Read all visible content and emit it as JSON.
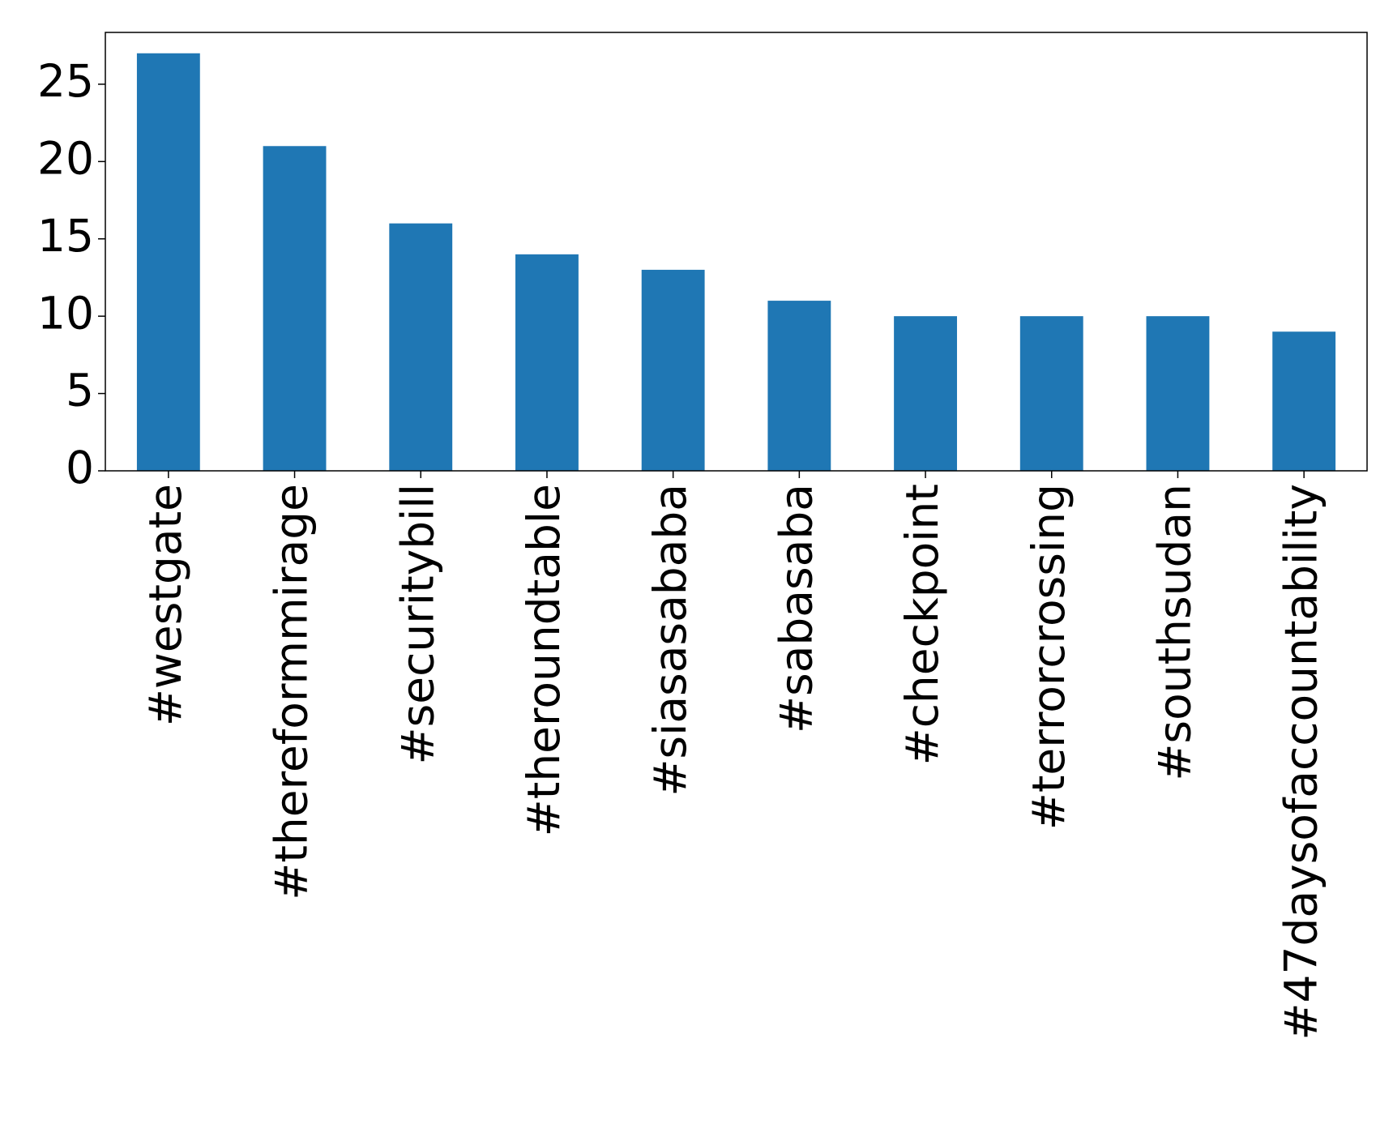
{
  "chart_data": {
    "type": "bar",
    "categories": [
      "#westgate",
      "#thereformmirage",
      "#securitybill",
      "#theroundtable",
      "#siasasababa",
      "#sabasaba",
      "#checkpoint",
      "#terrorcrossing",
      "#southsudan",
      "#47daysofaccountability"
    ],
    "values": [
      27,
      21,
      16,
      14,
      13,
      11,
      10,
      10,
      10,
      9
    ],
    "color": "#1f77b4",
    "ylim": [
      0,
      28.35
    ],
    "yticks": [
      0,
      5,
      10,
      15,
      20,
      25
    ],
    "grid": false
  }
}
